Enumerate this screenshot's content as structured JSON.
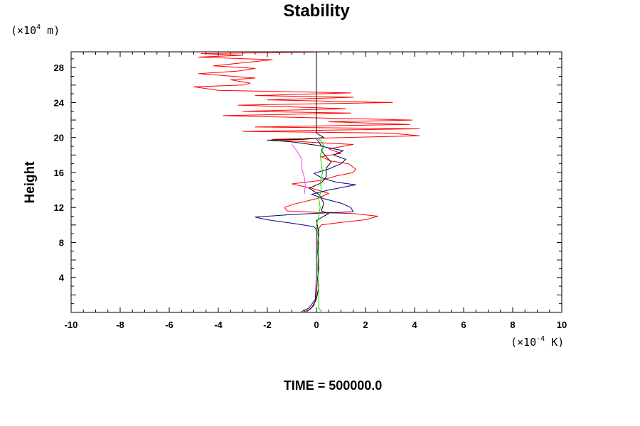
{
  "chart_data": {
    "type": "line",
    "title": "Stability",
    "ylabel": "Height",
    "y_unit": {
      "prefix": "(×10",
      "exp": "4",
      "suffix": " m)"
    },
    "x_unit": {
      "prefix": "(×10",
      "exp": "-4",
      "suffix": " K)"
    },
    "xlim": [
      -10,
      10
    ],
    "ylim": [
      0,
      29.8
    ],
    "x_ticks": [
      -10,
      -8,
      -6,
      -4,
      -2,
      0,
      2,
      4,
      6,
      8,
      10
    ],
    "y_ticks": [
      4,
      8,
      12,
      16,
      20,
      24,
      28
    ],
    "grid": false,
    "series": [
      {
        "color": "#ff0000",
        "points": [
          [
            -0.5,
            0.1
          ],
          [
            -0.3,
            0.3
          ],
          [
            -0.1,
            0.8
          ],
          [
            0.0,
            2
          ],
          [
            0.05,
            4
          ],
          [
            0.1,
            6
          ],
          [
            0.05,
            8
          ],
          [
            0.1,
            9.6
          ],
          [
            0.2,
            10.0
          ],
          [
            1.0,
            10.3
          ],
          [
            2.0,
            10.6
          ],
          [
            2.5,
            11.0
          ],
          [
            1.5,
            11.3
          ],
          [
            0.3,
            11.4
          ],
          [
            -1.2,
            11.6
          ],
          [
            -1.3,
            12.0
          ],
          [
            -0.9,
            12.4
          ],
          [
            0.0,
            13.0
          ],
          [
            0.5,
            13.6
          ],
          [
            -0.2,
            14.2
          ],
          [
            -1.0,
            14.7
          ],
          [
            0.2,
            15.1
          ],
          [
            0.8,
            15.6
          ],
          [
            1.5,
            16.0
          ],
          [
            1.6,
            16.4
          ],
          [
            1.3,
            17.0
          ],
          [
            0.6,
            17.3
          ],
          [
            0.2,
            17.8
          ],
          [
            1.0,
            18.2
          ],
          [
            0.5,
            18.7
          ],
          [
            1.5,
            19.2
          ],
          [
            -0.5,
            19.5
          ],
          [
            -1.8,
            19.8
          ],
          [
            4.2,
            20.2
          ],
          [
            3.0,
            20.5
          ],
          [
            -3.0,
            20.7
          ],
          [
            4.2,
            21.0
          ],
          [
            -2.5,
            21.2
          ],
          [
            3.8,
            21.5
          ],
          [
            0.5,
            21.8
          ],
          [
            3.9,
            22.0
          ],
          [
            -3.8,
            22.5
          ],
          [
            1.4,
            22.8
          ],
          [
            -3.0,
            23.0
          ],
          [
            1.2,
            23.3
          ],
          [
            -3.2,
            23.7
          ],
          [
            3.1,
            24.0
          ],
          [
            -2.0,
            24.3
          ],
          [
            1.5,
            24.6
          ],
          [
            -2.5,
            24.8
          ],
          [
            1.4,
            25.1
          ],
          [
            -4.0,
            25.4
          ],
          [
            -5.0,
            25.8
          ],
          [
            -3.0,
            26.0
          ],
          [
            -2.7,
            26.2
          ],
          [
            -3.5,
            26.6
          ],
          [
            -2.5,
            26.8
          ],
          [
            -4.8,
            27.3
          ],
          [
            -3.2,
            27.6
          ],
          [
            -2.5,
            27.9
          ],
          [
            -4.2,
            28.2
          ],
          [
            -2.8,
            28.6
          ],
          [
            -1.8,
            28.9
          ],
          [
            -4.8,
            29.2
          ],
          [
            -3.0,
            29.4
          ],
          [
            -4.7,
            29.6
          ],
          [
            -2.0,
            29.7
          ],
          [
            0.5,
            29.8
          ]
        ]
      },
      {
        "color": "#00007f",
        "points": [
          [
            -0.6,
            0.1
          ],
          [
            -0.3,
            0.5
          ],
          [
            -0.05,
            1.5
          ],
          [
            0.0,
            4
          ],
          [
            0.0,
            7
          ],
          [
            0.0,
            9.5
          ],
          [
            -0.1,
            9.8
          ],
          [
            -1.0,
            10.2
          ],
          [
            -2.0,
            10.6
          ],
          [
            -2.5,
            10.9
          ],
          [
            -1.0,
            11.2
          ],
          [
            0.5,
            11.4
          ],
          [
            1.5,
            11.5
          ],
          [
            1.4,
            12.0
          ],
          [
            1.0,
            12.5
          ],
          [
            0.3,
            13.0
          ],
          [
            -0.2,
            13.5
          ],
          [
            0.5,
            14.0
          ],
          [
            1.6,
            14.6
          ],
          [
            0.8,
            14.9
          ],
          [
            0.2,
            15.4
          ],
          [
            -0.1,
            15.9
          ],
          [
            0.5,
            16.4
          ],
          [
            1.0,
            17.0
          ],
          [
            1.2,
            17.5
          ],
          [
            0.7,
            18.0
          ],
          [
            1.1,
            18.5
          ],
          [
            0.2,
            19.0
          ],
          [
            0.1,
            19.5
          ],
          [
            0.0,
            19.8
          ]
        ]
      },
      {
        "color": "#000000",
        "points": [
          [
            -0.4,
            0.1
          ],
          [
            -0.2,
            0.5
          ],
          [
            0.0,
            1.5
          ],
          [
            0.1,
            3
          ],
          [
            0.05,
            4
          ],
          [
            0.1,
            5
          ],
          [
            0.05,
            7
          ],
          [
            0.1,
            9
          ],
          [
            0.0,
            10.5
          ],
          [
            0.3,
            11.0
          ],
          [
            0.5,
            11.3
          ],
          [
            0.2,
            11.6
          ],
          [
            0.3,
            12.5
          ],
          [
            0.1,
            13.5
          ],
          [
            -0.3,
            14.2
          ],
          [
            0.2,
            14.8
          ],
          [
            0.4,
            15.5
          ],
          [
            0.4,
            16.5
          ],
          [
            0.6,
            17.2
          ],
          [
            0.4,
            17.8
          ],
          [
            0.2,
            18.5
          ],
          [
            0.3,
            19.0
          ],
          [
            -1.0,
            19.5
          ],
          [
            -2.0,
            19.7
          ],
          [
            -0.5,
            19.8
          ],
          [
            0.3,
            20.0
          ],
          [
            0.0,
            20.5
          ],
          [
            0.0,
            29.8
          ]
        ]
      },
      {
        "color": "#ee44ee",
        "points": [
          [
            -1.0,
            19.7
          ],
          [
            -1.0,
            19.2
          ],
          [
            -0.8,
            18.5
          ],
          [
            -0.6,
            17.5
          ],
          [
            -0.6,
            16.5
          ],
          [
            -0.5,
            15.5
          ],
          [
            -0.45,
            14.5
          ],
          [
            -0.5,
            13.5
          ]
        ]
      },
      {
        "color": "#00dd00",
        "points": [
          [
            0.2,
            0.1
          ],
          [
            0.1,
            0.5
          ],
          [
            0.1,
            2
          ],
          [
            0.05,
            5
          ],
          [
            0.1,
            8
          ],
          [
            0.0,
            10
          ],
          [
            0.1,
            11
          ],
          [
            0.15,
            12
          ],
          [
            0.1,
            13
          ],
          [
            0.2,
            14
          ],
          [
            0.15,
            15
          ],
          [
            0.25,
            16
          ],
          [
            0.2,
            17
          ],
          [
            0.15,
            18
          ],
          [
            0.3,
            19
          ],
          [
            0.2,
            19.6
          ],
          [
            0.1,
            19.8
          ]
        ]
      }
    ],
    "footer": "TIME = 500000.0"
  }
}
